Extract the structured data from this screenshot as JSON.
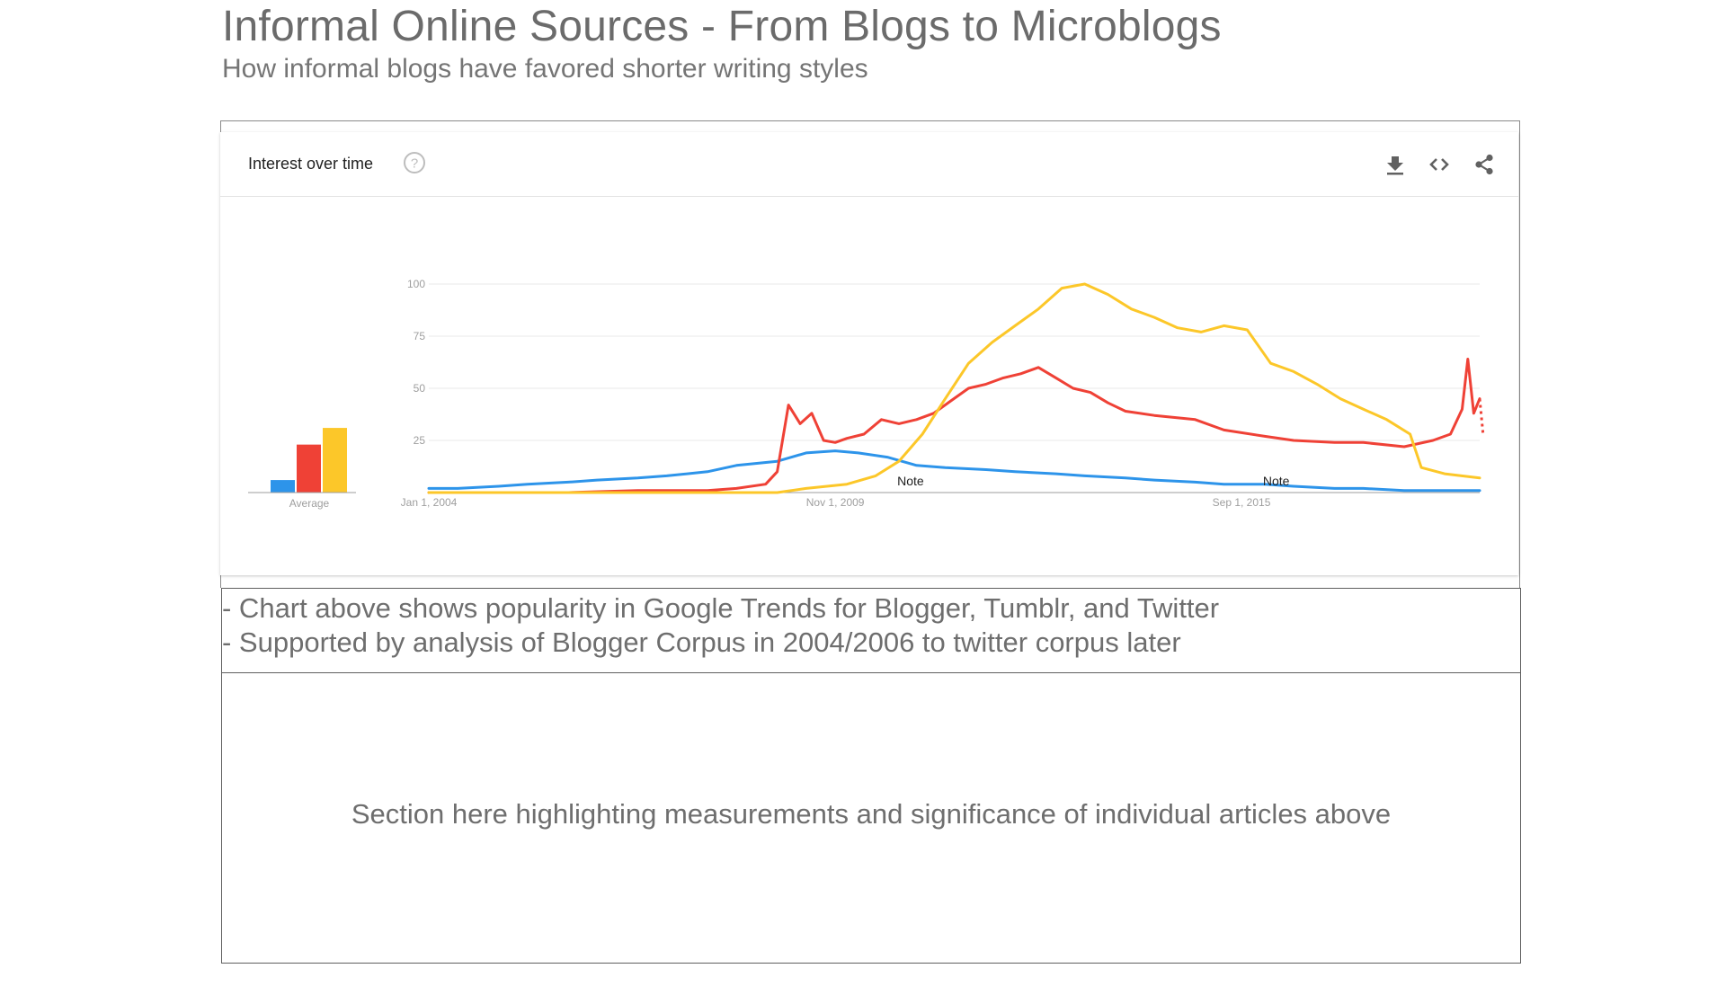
{
  "page": {
    "title": "Informal Online Sources - From Blogs to Microblogs",
    "subtitle": "How informal blogs have favored shorter writing styles"
  },
  "card": {
    "title": "Interest over time",
    "icons": {
      "help": "help-circle-icon",
      "download": "download-icon",
      "embed": "embed-code-icon",
      "share": "share-icon"
    }
  },
  "notes": [
    "- Chart above shows popularity in Google Trends for Blogger, Tumblr, and Twitter",
    "- Supported by analysis of Blogger Corpus in 2004/2006 to twitter corpus later"
  ],
  "section_text": "Section here highlighting measurements and significance of individual articles above",
  "chart_data": {
    "type": "line",
    "title": "",
    "x_start": "2004-01-01",
    "x_end": "2019-02-01",
    "x_tick_labels": [
      "Jan 1, 2004",
      "Nov 1, 2009",
      "Sep 1, 2015"
    ],
    "x_tick_dates": [
      "2004-01-01",
      "2009-11-01",
      "2015-09-01"
    ],
    "ylim": [
      0,
      100
    ],
    "y_ticks": [
      25,
      50,
      75,
      100
    ],
    "grid": true,
    "average_label": "Average",
    "annotations": [
      {
        "text": "Note",
        "date": "2010-12-01"
      },
      {
        "text": "Note",
        "date": "2016-03-01"
      }
    ],
    "series": [
      {
        "color": "#2d94ea",
        "average": 6,
        "points": [
          [
            "2004-01-01",
            2
          ],
          [
            "2004-06-01",
            2
          ],
          [
            "2005-01-01",
            3
          ],
          [
            "2005-06-01",
            4
          ],
          [
            "2006-01-01",
            5
          ],
          [
            "2006-06-01",
            6
          ],
          [
            "2007-01-01",
            7
          ],
          [
            "2007-06-01",
            8
          ],
          [
            "2008-01-01",
            10
          ],
          [
            "2008-06-01",
            13
          ],
          [
            "2009-01-01",
            15
          ],
          [
            "2009-06-01",
            19
          ],
          [
            "2009-11-01",
            20
          ],
          [
            "2010-03-01",
            19
          ],
          [
            "2010-08-01",
            17
          ],
          [
            "2011-01-01",
            13
          ],
          [
            "2011-06-01",
            12
          ],
          [
            "2012-01-01",
            11
          ],
          [
            "2012-06-01",
            10
          ],
          [
            "2013-01-01",
            9
          ],
          [
            "2013-06-01",
            8
          ],
          [
            "2014-01-01",
            7
          ],
          [
            "2014-06-01",
            6
          ],
          [
            "2015-01-01",
            5
          ],
          [
            "2015-06-01",
            4
          ],
          [
            "2016-01-01",
            4
          ],
          [
            "2016-06-01",
            3
          ],
          [
            "2017-01-01",
            2
          ],
          [
            "2017-06-01",
            2
          ],
          [
            "2018-01-01",
            1
          ],
          [
            "2018-06-01",
            1
          ],
          [
            "2019-02-01",
            1
          ]
        ]
      },
      {
        "color": "#ef4136",
        "average": 23,
        "points": [
          [
            "2004-01-01",
            0
          ],
          [
            "2005-01-01",
            0
          ],
          [
            "2006-01-01",
            0
          ],
          [
            "2007-01-01",
            1
          ],
          [
            "2008-01-01",
            1
          ],
          [
            "2008-06-01",
            2
          ],
          [
            "2008-11-01",
            4
          ],
          [
            "2009-01-01",
            10
          ],
          [
            "2009-03-01",
            42
          ],
          [
            "2009-05-01",
            33
          ],
          [
            "2009-07-01",
            38
          ],
          [
            "2009-09-01",
            25
          ],
          [
            "2009-11-01",
            24
          ],
          [
            "2010-01-01",
            26
          ],
          [
            "2010-04-01",
            28
          ],
          [
            "2010-07-01",
            35
          ],
          [
            "2010-10-01",
            33
          ],
          [
            "2011-01-01",
            35
          ],
          [
            "2011-04-01",
            38
          ],
          [
            "2011-07-01",
            44
          ],
          [
            "2011-10-01",
            50
          ],
          [
            "2012-01-01",
            52
          ],
          [
            "2012-04-01",
            55
          ],
          [
            "2012-07-01",
            57
          ],
          [
            "2012-10-01",
            60
          ],
          [
            "2013-01-01",
            55
          ],
          [
            "2013-04-01",
            50
          ],
          [
            "2013-07-01",
            48
          ],
          [
            "2013-10-01",
            43
          ],
          [
            "2014-01-01",
            39
          ],
          [
            "2014-06-01",
            37
          ],
          [
            "2015-01-01",
            35
          ],
          [
            "2015-06-01",
            30
          ],
          [
            "2016-01-01",
            27
          ],
          [
            "2016-06-01",
            25
          ],
          [
            "2017-01-01",
            24
          ],
          [
            "2017-06-01",
            24
          ],
          [
            "2018-01-01",
            22
          ],
          [
            "2018-06-01",
            25
          ],
          [
            "2018-09-01",
            28
          ],
          [
            "2018-11-01",
            40
          ],
          [
            "2018-12-01",
            64
          ],
          [
            "2019-01-01",
            38
          ],
          [
            "2019-02-01",
            45
          ]
        ]
      },
      {
        "color": "#fcc729",
        "average": 31,
        "points": [
          [
            "2004-01-01",
            0
          ],
          [
            "2006-01-01",
            0
          ],
          [
            "2008-01-01",
            0
          ],
          [
            "2009-01-01",
            0
          ],
          [
            "2009-06-01",
            2
          ],
          [
            "2010-01-01",
            4
          ],
          [
            "2010-06-01",
            8
          ],
          [
            "2010-10-01",
            15
          ],
          [
            "2011-02-01",
            28
          ],
          [
            "2011-06-01",
            45
          ],
          [
            "2011-10-01",
            62
          ],
          [
            "2012-02-01",
            72
          ],
          [
            "2012-06-01",
            80
          ],
          [
            "2012-10-01",
            88
          ],
          [
            "2013-02-01",
            98
          ],
          [
            "2013-06-01",
            100
          ],
          [
            "2013-10-01",
            95
          ],
          [
            "2014-02-01",
            88
          ],
          [
            "2014-06-01",
            84
          ],
          [
            "2014-10-01",
            79
          ],
          [
            "2015-02-01",
            77
          ],
          [
            "2015-06-01",
            80
          ],
          [
            "2015-10-01",
            78
          ],
          [
            "2016-02-01",
            62
          ],
          [
            "2016-06-01",
            58
          ],
          [
            "2016-10-01",
            52
          ],
          [
            "2017-02-01",
            45
          ],
          [
            "2017-06-01",
            40
          ],
          [
            "2017-10-01",
            35
          ],
          [
            "2018-02-01",
            28
          ],
          [
            "2018-04-01",
            12
          ],
          [
            "2018-08-01",
            9
          ],
          [
            "2019-02-01",
            7
          ]
        ]
      }
    ]
  }
}
